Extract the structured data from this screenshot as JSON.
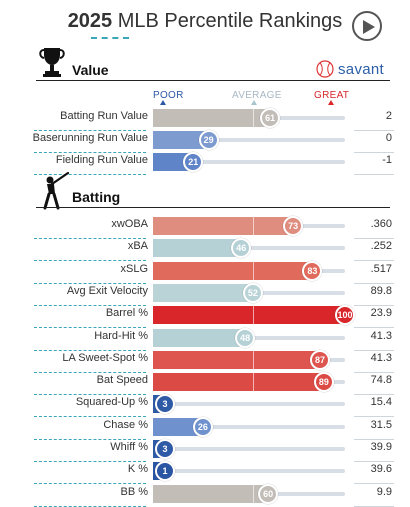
{
  "header": {
    "title_year": "2025",
    "title_rest": " MLB Percentile Rankings"
  },
  "brand": {
    "label": "savant"
  },
  "scale": {
    "poor": "POOR",
    "average": "AVERAGE",
    "great": "GREAT"
  },
  "sections": {
    "value": {
      "title": "Value"
    },
    "batting": {
      "title": "Batting"
    }
  },
  "value_rows": [
    {
      "label": "Batting Run Value",
      "percentile": 61,
      "value": "2",
      "color": "#c3bdb8"
    },
    {
      "label": "Baserunning Run Value",
      "percentile": 29,
      "value": "0",
      "color": "#7e9bd0"
    },
    {
      "label": "Fielding Run Value",
      "percentile": 21,
      "value": "-1",
      "color": "#5f84c8"
    }
  ],
  "batting_rows": [
    {
      "label": "xwOBA",
      "percentile": 73,
      "value": ".360",
      "color": "#df8d7f"
    },
    {
      "label": "xBA",
      "percentile": 46,
      "value": ".252",
      "color": "#b6d1d6"
    },
    {
      "label": "xSLG",
      "percentile": 83,
      "value": ".517",
      "color": "#e06a5c"
    },
    {
      "label": "Avg Exit Velocity",
      "percentile": 52,
      "value": "89.8",
      "color": "#b9d3d6"
    },
    {
      "label": "Barrel %",
      "percentile": 100,
      "value": "23.9",
      "color": "#d8262b"
    },
    {
      "label": "Hard-Hit %",
      "percentile": 48,
      "value": "41.3",
      "color": "#b6d1d6"
    },
    {
      "label": "LA Sweet-Spot %",
      "percentile": 87,
      "value": "41.3",
      "color": "#de5550"
    },
    {
      "label": "Bat Speed",
      "percentile": 89,
      "value": "74.8",
      "color": "#dc4a46"
    },
    {
      "label": "Squared-Up %",
      "percentile": 3,
      "value": "15.4",
      "color": "#2e5aa6"
    },
    {
      "label": "Chase %",
      "percentile": 26,
      "value": "31.5",
      "color": "#6f92ce"
    },
    {
      "label": "Whiff %",
      "percentile": 3,
      "value": "39.9",
      "color": "#2e5aa6"
    },
    {
      "label": "K %",
      "percentile": 1,
      "value": "39.6",
      "color": "#2a55a3"
    },
    {
      "label": "BB %",
      "percentile": 60,
      "value": "9.9",
      "color": "#c3bdb8"
    }
  ]
}
